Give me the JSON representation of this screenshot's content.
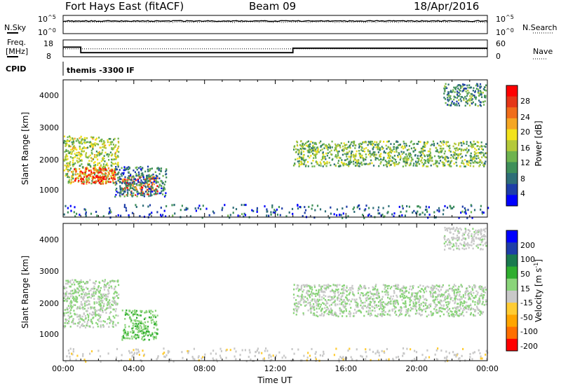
{
  "header": {
    "station": "Fort Hays East (fitACF)",
    "beam": "Beam 09",
    "date": "18/Apr/2016"
  },
  "noise_panel": {
    "left_label": "N.Sky",
    "right_label": "N.Search",
    "ticks": [
      {
        "base": "10",
        "exp": "^5"
      },
      {
        "base": "10",
        "exp": "^0"
      }
    ]
  },
  "freq_panel": {
    "left_label_line1": "Freq.",
    "left_label_line2": "[MHz]",
    "left_ticks": [
      "18",
      "8"
    ],
    "right_ticks": [
      "60",
      "0"
    ],
    "right_label": "Nave"
  },
  "cpid": {
    "label": "CPID",
    "text": "themis -3300 IF"
  },
  "x_axis": {
    "ticks": [
      "00:00",
      "04:00",
      "08:00",
      "12:00",
      "16:00",
      "20:00",
      "00:00"
    ],
    "label": "Time UT"
  },
  "power_panel": {
    "ylabel": "Slant Range [km]",
    "yticks": [
      "4000",
      "3000",
      "2000",
      "1000"
    ],
    "colorbar_label": "Power [dB]",
    "colorbar_ticks": [
      "28",
      "24",
      "20",
      "16",
      "12",
      "8",
      "4"
    ]
  },
  "velocity_panel": {
    "ylabel": "Slant Range [km]",
    "yticks": [
      "4000",
      "3000",
      "2000",
      "1000"
    ],
    "colorbar_label": "Velocity [m s",
    "colorbar_label_sup": "-1",
    "colorbar_label_end": "]",
    "colorbar_ticks": [
      "200",
      "100",
      "50",
      "15",
      "-15",
      "-50",
      "-100",
      "-200"
    ]
  },
  "chart_data": {
    "type": "heatmap",
    "x_range_hours": [
      0,
      24
    ],
    "range_km": [
      180,
      4500
    ],
    "noise": {
      "scale": "log",
      "ylim": [
        1,
        100000
      ],
      "sky_level": 3000,
      "search_level": 1500
    },
    "frequency": {
      "ylim_mhz": [
        8,
        18
      ],
      "segments": [
        {
          "start": 0.0,
          "end": 1.0,
          "mhz": 13.7
        },
        {
          "start": 1.0,
          "end": 13.0,
          "mhz": 10.4
        },
        {
          "start": 13.0,
          "end": 24.0,
          "mhz": 13.1
        }
      ],
      "nave_ylim": [
        0,
        60
      ],
      "nave": 28
    },
    "power": {
      "unit": "dB",
      "clim": [
        0,
        32
      ],
      "colorbar": [
        "#0000ff",
        "#1e3ea8",
        "#2e6e78",
        "#3f8f5a",
        "#6fb34f",
        "#b4c93a",
        "#f2e21c",
        "#f5a623",
        "#f06d1a",
        "#e53617",
        "#ff0000"
      ],
      "regions": [
        {
          "t": [
            0.0,
            3.1
          ],
          "r": [
            1250,
            2750
          ],
          "value": 16
        },
        {
          "t": [
            0.6,
            2.9
          ],
          "r": [
            1250,
            1750
          ],
          "value": 27
        },
        {
          "t": [
            3.3,
            5.3
          ],
          "r": [
            900,
            1500
          ],
          "value": 26
        },
        {
          "t": [
            2.9,
            5.8
          ],
          "r": [
            850,
            1800
          ],
          "value": 8
        },
        {
          "t": [
            13.0,
            23.9
          ],
          "r": [
            1800,
            2600
          ],
          "value": 13
        },
        {
          "t": [
            21.5,
            23.9
          ],
          "r": [
            3700,
            4400
          ],
          "value": 10
        },
        {
          "t": [
            0.0,
            24.0
          ],
          "r": [
            180,
            600
          ],
          "value": 6
        }
      ]
    },
    "velocity": {
      "unit": "m s^-1",
      "clim": [
        -250,
        250
      ],
      "colorbar": [
        "#ff0000",
        "#ff6f00",
        "#ffa500",
        "#ffcc33",
        "#c8c8c8",
        "#8ad47a",
        "#2fae2f",
        "#1a7a4f",
        "#1e3ea8",
        "#0000ff"
      ],
      "regions": [
        {
          "t": [
            0.0,
            3.1
          ],
          "r": [
            1250,
            2750
          ],
          "value": 0
        },
        {
          "t": [
            3.3,
            5.3
          ],
          "r": [
            850,
            1800
          ],
          "value": 40
        },
        {
          "t": [
            13.0,
            23.9
          ],
          "r": [
            1600,
            2600
          ],
          "value": 0
        },
        {
          "t": [
            21.5,
            23.9
          ],
          "r": [
            3700,
            4400
          ],
          "value": -20
        },
        {
          "t": [
            0.0,
            24.0
          ],
          "r": [
            180,
            600
          ],
          "value": -30
        }
      ]
    }
  }
}
